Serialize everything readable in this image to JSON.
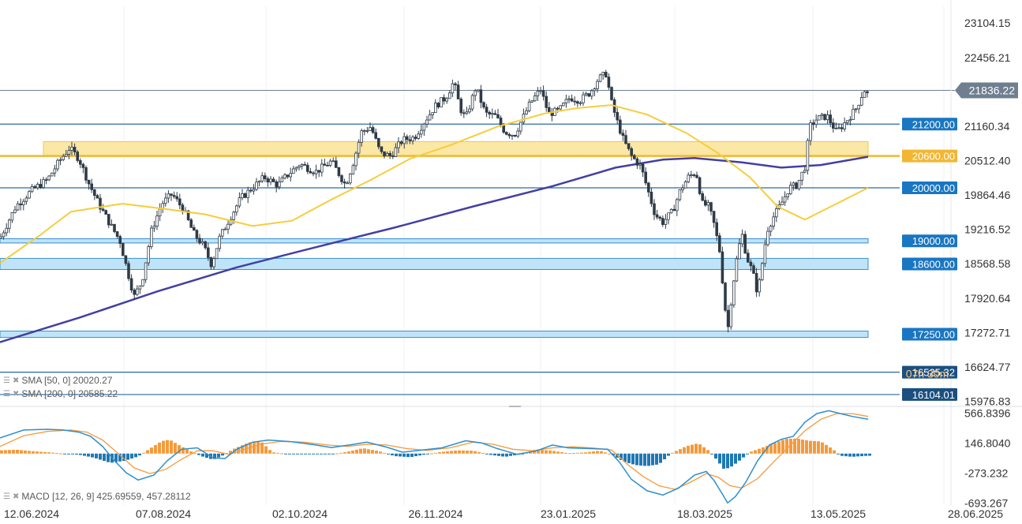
{
  "chart_data": {
    "type": "candlestick",
    "x_ticks": [
      "12.06.2024",
      "07.08.2024",
      "02.10.2024",
      "26.11.2024",
      "23.01.2025",
      "18.03.2025",
      "13.05.2025",
      "28.06.2025"
    ],
    "price_axis_ticks": [
      "23104.15",
      "22456.21",
      "21160.34",
      "20512.40",
      "19864.46",
      "19216.52",
      "18568.58",
      "17920.64",
      "17272.71",
      "16624.77",
      "15976.83"
    ],
    "price_range": [
      15880,
      23420
    ],
    "last_price": {
      "label": "21836.22",
      "value": 21836.22
    },
    "horizontal_levels": [
      {
        "label": "21200.00",
        "value": 21200
      },
      {
        "label": "20600.00",
        "value": 20600
      },
      {
        "label": "20000.00",
        "value": 20000
      },
      {
        "label": "16525.32",
        "value": 16525.32
      },
      {
        "label": "16104.01",
        "value": 16104.01
      }
    ],
    "zones": [
      {
        "label": "19000.00",
        "low": 18960,
        "high": 19040,
        "color": "#bfe4f9"
      },
      {
        "label": "18600.00",
        "low": 18460,
        "high": 18670,
        "color": "#bfe4f9"
      },
      {
        "label": "17250.00",
        "low": 17180,
        "high": 17300,
        "color": "#bfe4f9"
      },
      {
        "label": "",
        "low": 20600,
        "high": 20870,
        "color": "#fbe7a6"
      }
    ],
    "watermark_text": "07h 30m",
    "sma_50": {
      "label": "SMA [50, 0]",
      "value": "20020.27",
      "color": "#f5cd3c",
      "points": [
        [
          0,
          18580
        ],
        [
          50,
          19100
        ],
        [
          90,
          19550
        ],
        [
          155,
          19700
        ],
        [
          210,
          19600
        ],
        [
          260,
          19500
        ],
        [
          320,
          19280
        ],
        [
          370,
          19380
        ],
        [
          420,
          19780
        ],
        [
          470,
          20150
        ],
        [
          520,
          20550
        ],
        [
          570,
          20800
        ],
        [
          630,
          21150
        ],
        [
          690,
          21400
        ],
        [
          730,
          21500
        ],
        [
          775,
          21560
        ],
        [
          820,
          21380
        ],
        [
          870,
          21030
        ],
        [
          910,
          20650
        ],
        [
          950,
          20200
        ],
        [
          985,
          19650
        ],
        [
          1020,
          19400
        ],
        [
          1060,
          19700
        ],
        [
          1100,
          20000
        ]
      ]
    },
    "sma_200": {
      "label": "SMA [200, 0]",
      "value": "20585.22",
      "color": "#4240a2",
      "points": [
        [
          0,
          17090
        ],
        [
          100,
          17550
        ],
        [
          200,
          18050
        ],
        [
          300,
          18500
        ],
        [
          400,
          18880
        ],
        [
          500,
          19250
        ],
        [
          600,
          19650
        ],
        [
          700,
          20030
        ],
        [
          780,
          20380
        ],
        [
          840,
          20530
        ],
        [
          880,
          20560
        ],
        [
          940,
          20480
        ],
        [
          990,
          20380
        ],
        [
          1040,
          20430
        ],
        [
          1100,
          20585
        ]
      ]
    },
    "price_path": [
      [
        0,
        19050
      ],
      [
        20,
        19650
      ],
      [
        40,
        19950
      ],
      [
        60,
        20150
      ],
      [
        75,
        20500
      ],
      [
        88,
        20750
      ],
      [
        100,
        20550
      ],
      [
        112,
        20100
      ],
      [
        125,
        19700
      ],
      [
        140,
        19300
      ],
      [
        152,
        19000
      ],
      [
        162,
        18400
      ],
      [
        170,
        17950
      ],
      [
        180,
        18250
      ],
      [
        192,
        19200
      ],
      [
        205,
        19700
      ],
      [
        218,
        19880
      ],
      [
        232,
        19600
      ],
      [
        245,
        19150
      ],
      [
        258,
        18900
      ],
      [
        268,
        18550
      ],
      [
        278,
        19050
      ],
      [
        292,
        19450
      ],
      [
        305,
        19800
      ],
      [
        320,
        20000
      ],
      [
        335,
        20200
      ],
      [
        352,
        20050
      ],
      [
        365,
        20250
      ],
      [
        380,
        20450
      ],
      [
        400,
        20300
      ],
      [
        420,
        20500
      ],
      [
        438,
        20050
      ],
      [
        448,
        20500
      ],
      [
        458,
        21050
      ],
      [
        470,
        21150
      ],
      [
        482,
        20650
      ],
      [
        495,
        20600
      ],
      [
        510,
        20900
      ],
      [
        525,
        20950
      ],
      [
        538,
        21250
      ],
      [
        552,
        21550
      ],
      [
        565,
        21700
      ],
      [
        575,
        22000
      ],
      [
        583,
        21500
      ],
      [
        590,
        21300
      ],
      [
        603,
        21900
      ],
      [
        615,
        21400
      ],
      [
        628,
        21350
      ],
      [
        640,
        21050
      ],
      [
        652,
        21000
      ],
      [
        662,
        21300
      ],
      [
        672,
        21600
      ],
      [
        685,
        21850
      ],
      [
        695,
        21400
      ],
      [
        708,
        21450
      ],
      [
        722,
        21700
      ],
      [
        735,
        21650
      ],
      [
        748,
        21800
      ],
      [
        758,
        22050
      ],
      [
        768,
        22150
      ],
      [
        775,
        21600
      ],
      [
        782,
        21250
      ],
      [
        790,
        20900
      ],
      [
        800,
        20600
      ],
      [
        812,
        20400
      ],
      [
        822,
        19900
      ],
      [
        830,
        19500
      ],
      [
        840,
        19350
      ],
      [
        852,
        19550
      ],
      [
        862,
        19950
      ],
      [
        872,
        20200
      ],
      [
        882,
        20300
      ],
      [
        890,
        19700
      ],
      [
        898,
        19650
      ],
      [
        905,
        19300
      ],
      [
        912,
        18800
      ],
      [
        918,
        17850
      ],
      [
        922,
        17300
      ],
      [
        928,
        18100
      ],
      [
        934,
        18700
      ],
      [
        940,
        19150
      ],
      [
        946,
        18700
      ],
      [
        954,
        18400
      ],
      [
        960,
        18000
      ],
      [
        966,
        18600
      ],
      [
        972,
        19200
      ],
      [
        980,
        19450
      ],
      [
        990,
        19700
      ],
      [
        1000,
        20000
      ],
      [
        1010,
        20050
      ],
      [
        1020,
        20400
      ],
      [
        1026,
        21150
      ],
      [
        1035,
        21300
      ],
      [
        1048,
        21350
      ],
      [
        1060,
        21050
      ],
      [
        1072,
        21250
      ],
      [
        1085,
        21500
      ],
      [
        1095,
        21850
      ],
      [
        1102,
        21700
      ]
    ],
    "macd": {
      "label": "MACD [12, 26, 9]",
      "values": "425.69559,  457.28112",
      "axis_ticks": [
        "566.8396",
        "146.8040",
        "-273.232",
        "-693.267"
      ],
      "range": [
        -720,
        660
      ],
      "histogram": [
        [
          0,
          45
        ],
        [
          20,
          55
        ],
        [
          40,
          35
        ],
        [
          60,
          20
        ],
        [
          80,
          0
        ],
        [
          100,
          -15
        ],
        [
          120,
          -60
        ],
        [
          140,
          -130
        ],
        [
          158,
          -100
        ],
        [
          175,
          -40
        ],
        [
          190,
          70
        ],
        [
          205,
          175
        ],
        [
          215,
          195
        ],
        [
          225,
          130
        ],
        [
          240,
          40
        ],
        [
          255,
          -35
        ],
        [
          270,
          -85
        ],
        [
          280,
          -40
        ],
        [
          295,
          60
        ],
        [
          315,
          155
        ],
        [
          330,
          175
        ],
        [
          345,
          20
        ],
        [
          365,
          -8
        ],
        [
          395,
          -10
        ],
        [
          420,
          -10
        ],
        [
          440,
          25
        ],
        [
          460,
          75
        ],
        [
          480,
          35
        ],
        [
          500,
          -35
        ],
        [
          520,
          -50
        ],
        [
          540,
          -10
        ],
        [
          560,
          25
        ],
        [
          580,
          45
        ],
        [
          600,
          40
        ],
        [
          620,
          -15
        ],
        [
          640,
          -45
        ],
        [
          660,
          -10
        ],
        [
          680,
          60
        ],
        [
          700,
          40
        ],
        [
          720,
          5
        ],
        [
          740,
          15
        ],
        [
          760,
          40
        ],
        [
          775,
          -10
        ],
        [
          790,
          -110
        ],
        [
          805,
          -160
        ],
        [
          820,
          -175
        ],
        [
          835,
          -150
        ],
        [
          850,
          0
        ],
        [
          870,
          105
        ],
        [
          885,
          145
        ],
        [
          900,
          25
        ],
        [
          910,
          -110
        ],
        [
          918,
          -225
        ],
        [
          928,
          -175
        ],
        [
          938,
          -90
        ],
        [
          950,
          20
        ],
        [
          965,
          80
        ],
        [
          980,
          140
        ],
        [
          995,
          205
        ],
        [
          1010,
          210
        ],
        [
          1025,
          180
        ],
        [
          1040,
          170
        ],
        [
          1055,
          65
        ],
        [
          1065,
          -30
        ],
        [
          1080,
          -45
        ],
        [
          1100,
          -30
        ]
      ],
      "macd_line": [
        [
          0,
          220
        ],
        [
          30,
          330
        ],
        [
          60,
          340
        ],
        [
          80,
          330
        ],
        [
          100,
          300
        ],
        [
          115,
          240
        ],
        [
          130,
          100
        ],
        [
          145,
          -100
        ],
        [
          160,
          -270
        ],
        [
          175,
          -370
        ],
        [
          195,
          -300
        ],
        [
          212,
          -100
        ],
        [
          230,
          60
        ],
        [
          250,
          80
        ],
        [
          270,
          -60
        ],
        [
          285,
          -70
        ],
        [
          300,
          60
        ],
        [
          320,
          160
        ],
        [
          340,
          190
        ],
        [
          370,
          165
        ],
        [
          400,
          120
        ],
        [
          420,
          85
        ],
        [
          445,
          125
        ],
        [
          465,
          160
        ],
        [
          490,
          90
        ],
        [
          510,
          20
        ],
        [
          535,
          50
        ],
        [
          560,
          80
        ],
        [
          590,
          180
        ],
        [
          610,
          150
        ],
        [
          630,
          70
        ],
        [
          655,
          -10
        ],
        [
          680,
          40
        ],
        [
          700,
          120
        ],
        [
          720,
          80
        ],
        [
          745,
          70
        ],
        [
          770,
          60
        ],
        [
          785,
          -120
        ],
        [
          800,
          -360
        ],
        [
          820,
          -520
        ],
        [
          840,
          -580
        ],
        [
          860,
          -480
        ],
        [
          880,
          -300
        ],
        [
          895,
          -250
        ],
        [
          905,
          -380
        ],
        [
          915,
          -560
        ],
        [
          922,
          -690
        ],
        [
          932,
          -600
        ],
        [
          945,
          -400
        ],
        [
          960,
          -100
        ],
        [
          975,
          120
        ],
        [
          990,
          200
        ],
        [
          1005,
          240
        ],
        [
          1020,
          440
        ],
        [
          1035,
          560
        ],
        [
          1050,
          600
        ],
        [
          1065,
          560
        ],
        [
          1080,
          520
        ],
        [
          1100,
          480
        ]
      ],
      "signal_line": [
        [
          0,
          100
        ],
        [
          30,
          250
        ],
        [
          60,
          310
        ],
        [
          90,
          330
        ],
        [
          110,
          300
        ],
        [
          130,
          190
        ],
        [
          150,
          0
        ],
        [
          170,
          -200
        ],
        [
          190,
          -280
        ],
        [
          210,
          -220
        ],
        [
          230,
          -80
        ],
        [
          250,
          40
        ],
        [
          270,
          40
        ],
        [
          290,
          -10
        ],
        [
          310,
          60
        ],
        [
          330,
          130
        ],
        [
          355,
          170
        ],
        [
          385,
          160
        ],
        [
          415,
          120
        ],
        [
          440,
          100
        ],
        [
          465,
          130
        ],
        [
          490,
          120
        ],
        [
          515,
          70
        ],
        [
          540,
          45
        ],
        [
          570,
          80
        ],
        [
          600,
          160
        ],
        [
          625,
          130
        ],
        [
          650,
          60
        ],
        [
          675,
          40
        ],
        [
          700,
          80
        ],
        [
          725,
          95
        ],
        [
          750,
          80
        ],
        [
          775,
          50
        ],
        [
          795,
          -150
        ],
        [
          815,
          -320
        ],
        [
          835,
          -450
        ],
        [
          855,
          -500
        ],
        [
          875,
          -400
        ],
        [
          895,
          -280
        ],
        [
          910,
          -330
        ],
        [
          925,
          -450
        ],
        [
          940,
          -480
        ],
        [
          960,
          -350
        ],
        [
          980,
          -120
        ],
        [
          1000,
          100
        ],
        [
          1020,
          320
        ],
        [
          1040,
          480
        ],
        [
          1060,
          560
        ],
        [
          1080,
          560
        ],
        [
          1100,
          520
        ]
      ]
    }
  }
}
